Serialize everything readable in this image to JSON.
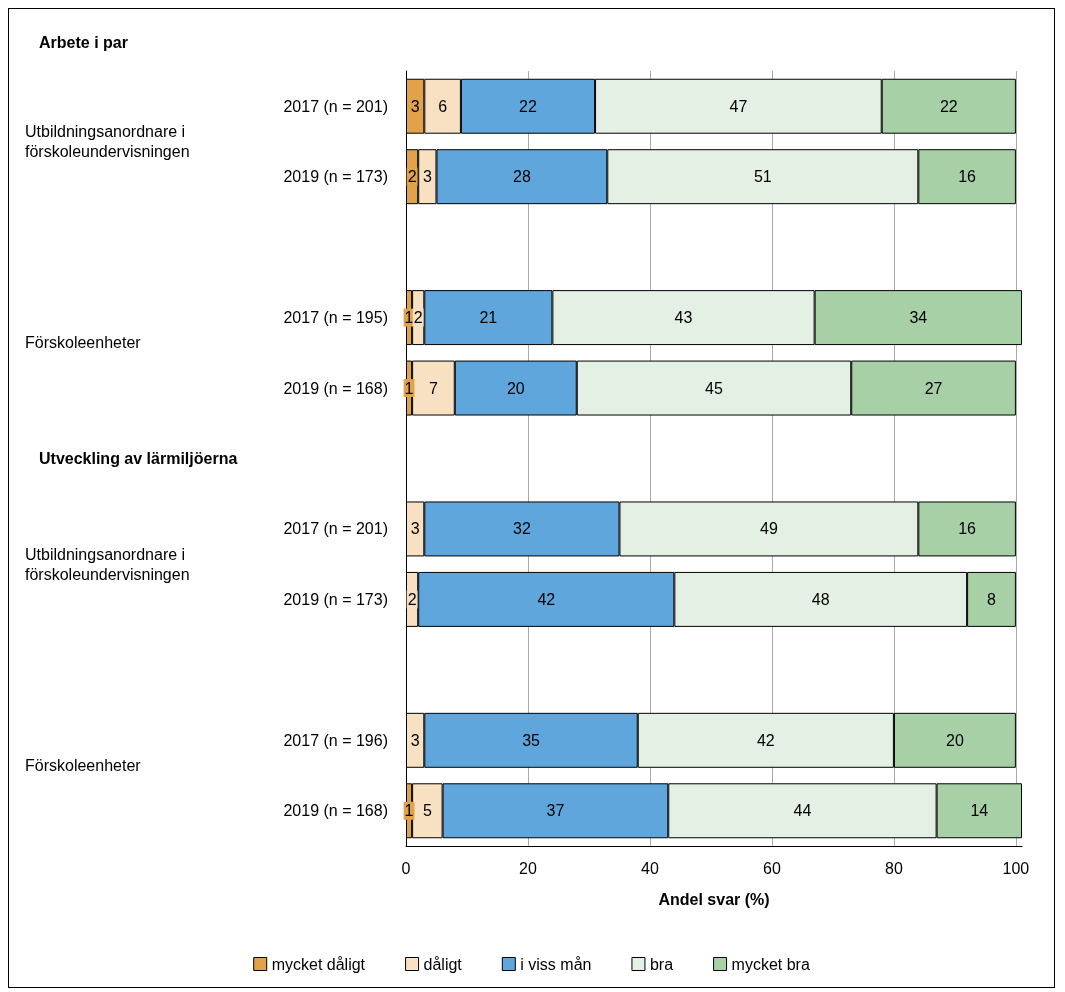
{
  "chart_data": {
    "type": "bar",
    "orientation": "horizontal",
    "stacked": true,
    "data_labels": true,
    "grid": "x",
    "legend": "bottom",
    "xlabel": "Andel svar (%)",
    "categories": [
      "2017 (n = 201)",
      "2019 (n = 173)",
      null,
      "2017 (n = 195)",
      "2019 (n = 168)",
      null,
      "2017 (n = 201)",
      "2019 (n = 173)",
      null,
      "2017 (n = 196)",
      "2019 (n = 168)"
    ],
    "annotations": [
      "Arbete i par",
      "Utbildningsanordnare i\nförskoleundervisningen",
      "Förskoleenheter",
      "Utveckling av lärmiljöerna",
      "Utbildningsanordnare i\nförskoleundervisningen",
      "Förskoleenheter"
    ],
    "xlim": [
      0,
      101
    ],
    "xticks": [
      0,
      20,
      40,
      60,
      80,
      100
    ],
    "series": [
      {
        "name": "mycket dåligt",
        "color": "#e0a24a",
        "values": [
          3,
          2,
          null,
          1,
          1,
          null,
          null,
          null,
          null,
          null,
          1
        ]
      },
      {
        "name": "dåligt",
        "color": "#f7e1c2",
        "values": [
          6,
          3,
          null,
          2,
          7,
          null,
          3,
          2,
          null,
          3,
          5
        ]
      },
      {
        "name": "i viss mån",
        "color": "#5fa6dc",
        "values": [
          22,
          28,
          null,
          21,
          20,
          null,
          32,
          42,
          null,
          35,
          37
        ]
      },
      {
        "name": "bra",
        "color": "#e4f0e4",
        "values": [
          47,
          51,
          null,
          43,
          45,
          null,
          49,
          48,
          null,
          42,
          44
        ]
      },
      {
        "name": "mycket bra",
        "color": "#a7d0a7",
        "values": [
          22,
          16,
          null,
          34,
          27,
          null,
          16,
          8,
          null,
          20,
          14
        ]
      }
    ]
  }
}
